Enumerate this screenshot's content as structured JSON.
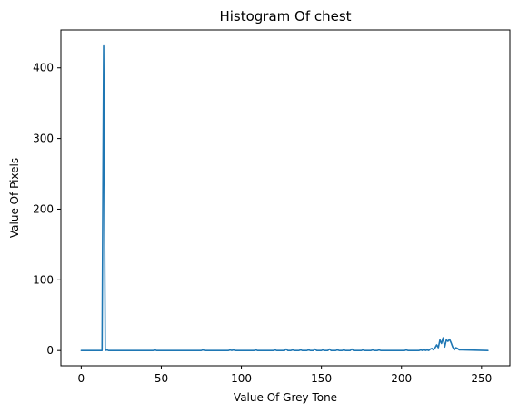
{
  "chart_data": {
    "type": "line",
    "title": "Histogram Of chest",
    "xlabel": "Value Of Grey Tone",
    "ylabel": "Value Of Pixels",
    "xlim": [
      -12.7,
      267.7
    ],
    "ylim": [
      -21.6,
      453.6
    ],
    "xticks": [
      0,
      50,
      100,
      150,
      200,
      250
    ],
    "yticks": [
      0,
      100,
      200,
      300,
      400
    ],
    "grid": false,
    "legend": "none",
    "series": [
      {
        "color": "#1f77b4",
        "x": [
          0,
          13,
          14,
          15,
          16,
          17,
          45,
          46,
          47,
          75,
          76,
          77,
          92,
          93,
          94,
          95,
          96,
          97,
          108,
          109,
          110,
          120,
          121,
          122,
          127,
          128,
          129,
          131,
          132,
          133,
          136,
          137,
          138,
          141,
          142,
          143,
          145,
          146,
          147,
          150,
          151,
          152,
          154,
          155,
          156,
          159,
          160,
          161,
          163,
          164,
          165,
          168,
          169,
          170,
          175,
          176,
          177,
          181,
          182,
          183,
          185,
          186,
          187,
          202,
          203,
          204,
          211,
          212,
          213,
          214,
          215,
          216,
          217,
          218,
          219,
          220,
          221,
          222,
          223,
          224,
          225,
          226,
          227,
          228,
          229,
          230,
          231,
          232,
          233,
          234,
          235,
          236,
          254
        ],
        "y": [
          0,
          0,
          431,
          0,
          1,
          0,
          0,
          1,
          0,
          0,
          1,
          0,
          0,
          1,
          0,
          1,
          0,
          0,
          0,
          1,
          0,
          0,
          1,
          0,
          0,
          2,
          0,
          0,
          1,
          0,
          0,
          1,
          0,
          0,
          1,
          0,
          0,
          2,
          0,
          0,
          1,
          0,
          0,
          2,
          0,
          0,
          1,
          0,
          0,
          1,
          0,
          0,
          2,
          0,
          0,
          1,
          0,
          0,
          1,
          0,
          0,
          1,
          0,
          0,
          1,
          0,
          0,
          1,
          0,
          2,
          0,
          1,
          0,
          2,
          3,
          1,
          4,
          8,
          4,
          15,
          10,
          18,
          5,
          15,
          13,
          16,
          11,
          5,
          1,
          4,
          3,
          1,
          0
        ]
      }
    ]
  }
}
